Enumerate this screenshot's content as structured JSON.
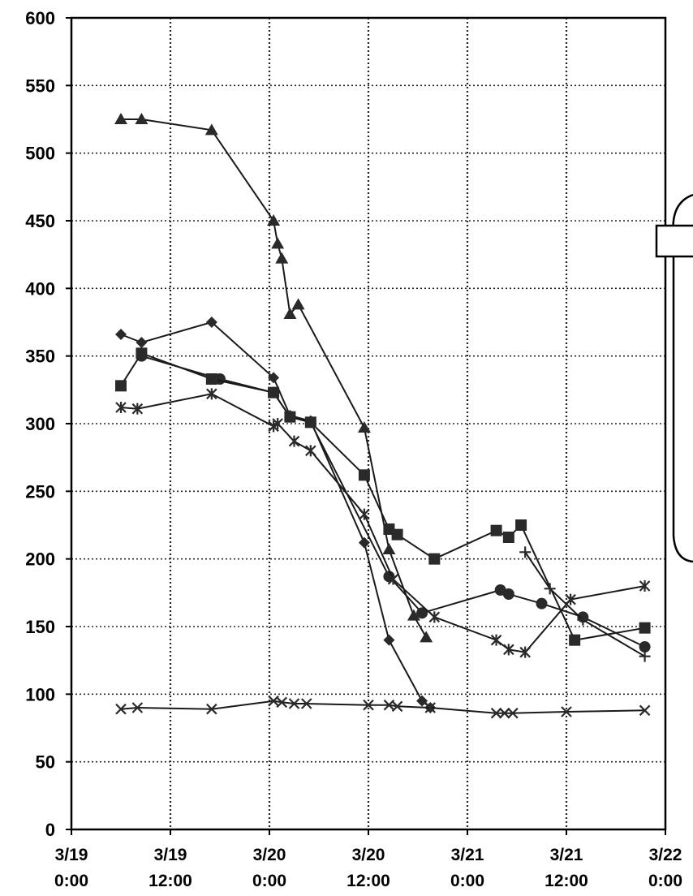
{
  "chart_data": {
    "type": "line",
    "title": "",
    "xlabel": "",
    "ylabel": "",
    "ylim": [
      0,
      600
    ],
    "y_ticks": [
      0,
      50,
      100,
      150,
      200,
      250,
      300,
      350,
      400,
      450,
      500,
      550,
      600
    ],
    "y_tick_labels": [
      "0",
      "50",
      "100",
      "150",
      "200",
      "250",
      "300",
      "350",
      "400",
      "450",
      "500",
      "550",
      "600"
    ],
    "x_unit": "hours since 3/19 0:00",
    "xlim": [
      0,
      72
    ],
    "x_ticks": [
      0,
      12,
      24,
      36,
      48,
      60,
      72
    ],
    "x_tick_labels": [
      [
        "3/19",
        "0:00"
      ],
      [
        "3/19",
        "12:00"
      ],
      [
        "3/20",
        "0:00"
      ],
      [
        "3/20",
        "12:00"
      ],
      [
        "3/21",
        "0:00"
      ],
      [
        "3/21",
        "12:00"
      ],
      [
        "3/22",
        "0:00"
      ]
    ],
    "grid": true,
    "legend": "none",
    "series": [
      {
        "marker": "triangle",
        "points": [
          [
            6,
            525
          ],
          [
            8.5,
            525
          ],
          [
            17,
            517
          ],
          [
            24.5,
            450
          ],
          [
            25,
            433
          ],
          [
            25.5,
            422
          ],
          [
            26.5,
            381
          ],
          [
            27.5,
            388
          ],
          [
            35.5,
            297
          ],
          [
            38.5,
            207
          ],
          [
            41.5,
            158
          ],
          [
            43,
            142
          ]
        ]
      },
      {
        "marker": "diamond",
        "points": [
          [
            6,
            366
          ],
          [
            8.5,
            360
          ],
          [
            17,
            375
          ],
          [
            24.5,
            334
          ],
          [
            26.5,
            306
          ],
          [
            29,
            302
          ],
          [
            35.5,
            212
          ],
          [
            38.5,
            140
          ],
          [
            42.5,
            95
          ],
          [
            43.5,
            90
          ]
        ]
      },
      {
        "marker": "circle",
        "points": [
          [
            8.5,
            350
          ],
          [
            18,
            333
          ],
          [
            24.5,
            323
          ],
          [
            26.5,
            305
          ],
          [
            29,
            301
          ],
          [
            38.5,
            187
          ],
          [
            42.5,
            160
          ],
          [
            52,
            177
          ],
          [
            53,
            174
          ],
          [
            57,
            167
          ],
          [
            62,
            157
          ],
          [
            69.5,
            135
          ]
        ]
      },
      {
        "marker": "square",
        "points": [
          [
            6,
            328
          ],
          [
            8.5,
            352
          ],
          [
            17,
            333
          ],
          [
            24.5,
            323
          ],
          [
            26.5,
            305
          ],
          [
            29,
            301
          ],
          [
            35.5,
            262
          ],
          [
            38.5,
            222
          ],
          [
            39.5,
            218
          ],
          [
            44,
            200
          ],
          [
            51.5,
            221
          ],
          [
            53,
            216
          ],
          [
            54.5,
            225
          ],
          [
            61,
            140
          ],
          [
            69.5,
            149
          ]
        ]
      },
      {
        "marker": "cross",
        "points": [
          [
            6,
            312
          ],
          [
            8,
            311
          ],
          [
            17,
            322
          ],
          [
            24.5,
            298
          ],
          [
            25,
            300
          ],
          [
            27,
            287
          ],
          [
            29,
            280
          ],
          [
            35.5,
            233
          ],
          [
            39,
            185
          ],
          [
            44,
            157
          ],
          [
            51.5,
            140
          ],
          [
            53,
            133
          ],
          [
            55,
            131
          ],
          [
            60.5,
            170
          ],
          [
            69.5,
            180
          ]
        ]
      },
      {
        "marker": "x",
        "points": [
          [
            6,
            89
          ],
          [
            8,
            90
          ],
          [
            17,
            89
          ],
          [
            24.5,
            95
          ],
          [
            25.5,
            94
          ],
          [
            27,
            93
          ],
          [
            28.5,
            93
          ],
          [
            36,
            92
          ],
          [
            38.5,
            92
          ],
          [
            39.5,
            91
          ],
          [
            43.5,
            90
          ],
          [
            51.5,
            86
          ],
          [
            52.5,
            86
          ],
          [
            53.5,
            86
          ],
          [
            60,
            87
          ],
          [
            69.5,
            88
          ]
        ]
      },
      {
        "marker": "plus",
        "points": [
          [
            55,
            205
          ],
          [
            58,
            178
          ],
          [
            62,
            155
          ],
          [
            69.5,
            128
          ]
        ]
      }
    ],
    "colors": {
      "line": "#1a1a1a",
      "marker": "#2a2a2a",
      "grid": "#222222",
      "background": "#ffffff"
    }
  }
}
